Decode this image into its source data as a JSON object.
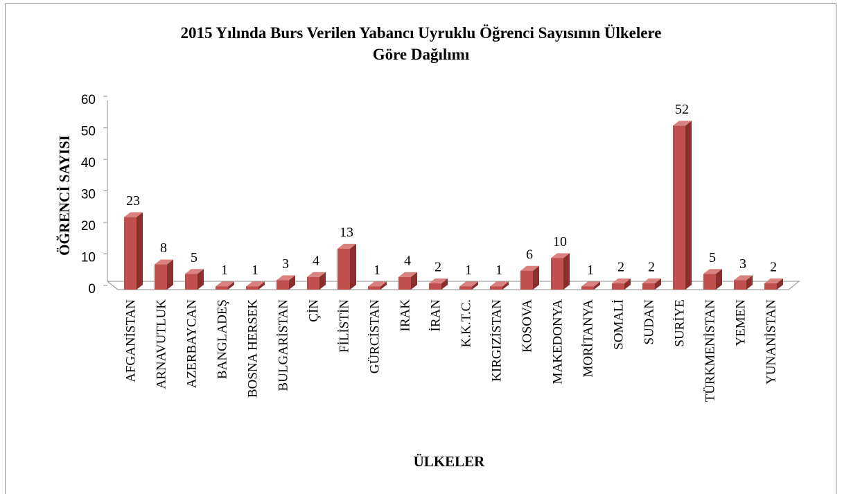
{
  "chart_data": {
    "type": "bar",
    "title": "2015 Yılında Burs Verilen Yabancı Uyruklu Öğrenci Sayısının Ülkelere Göre Dağılımı",
    "x_label": "ÜLKELER",
    "y_label": "ÖĞRENCİ SAYISI",
    "categories": [
      "AFGANİSTAN",
      "ARNAVUTLUK",
      "AZERBAYCAN",
      "BANGLADEŞ",
      "BOSNA HERSEK",
      "BULGARİSTAN",
      "ÇİN",
      "FİLİSTİN",
      "GÜRCİSTAN",
      "IRAK",
      "İRAN",
      "K.K.T.C.",
      "KIRGIZİSTAN",
      "KOSOVA",
      "MAKEDONYA",
      "MORİTANYA",
      "SOMALİ",
      "SUDAN",
      "SURİYE",
      "TÜRKMENİSTAN",
      "YEMEN",
      "YUNANİSTAN"
    ],
    "values": [
      23,
      8,
      5,
      1,
      1,
      3,
      4,
      13,
      1,
      4,
      2,
      1,
      1,
      6,
      10,
      1,
      2,
      2,
      52,
      5,
      3,
      2
    ],
    "color": "#c0504d",
    "ylim": [
      0,
      60
    ],
    "yticks": [
      0,
      10,
      20,
      30,
      40,
      50,
      60
    ]
  }
}
